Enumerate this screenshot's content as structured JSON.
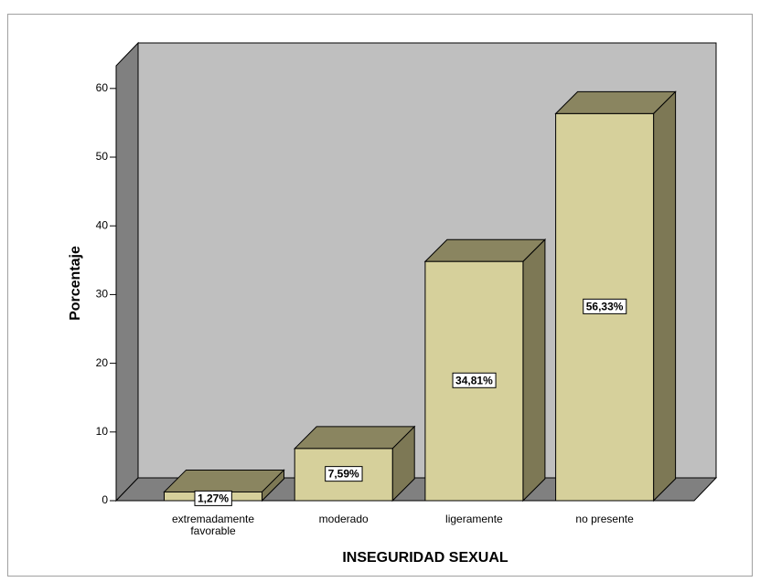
{
  "chart_data": {
    "type": "bar3d",
    "xlabel": "INSEGURIDAD SEXUAL",
    "ylabel": "Porcentaje",
    "categories": [
      "extremadamente favorable",
      "moderado",
      "ligeramente",
      "no presente"
    ],
    "values": [
      1.27,
      7.59,
      34.81,
      56.33
    ],
    "value_labels": [
      "1,27%",
      "7,59%",
      "34,81%",
      "56,33%"
    ],
    "color": "#d6d09b",
    "ylim": [
      0,
      63.3
    ],
    "yticks": [
      0,
      10,
      20,
      30,
      40,
      50,
      60
    ]
  }
}
